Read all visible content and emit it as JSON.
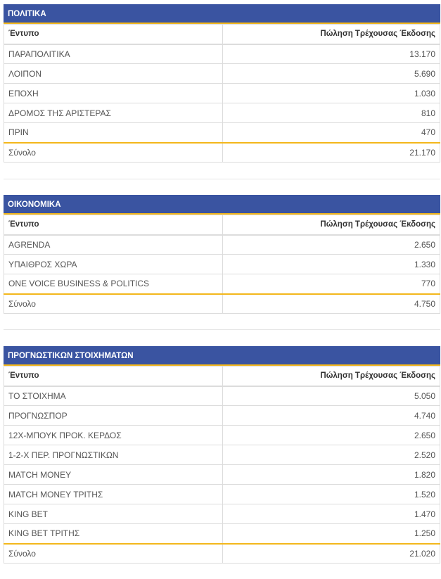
{
  "sections": [
    {
      "title": "ΠΟΛΙΤΙΚΑ",
      "col_item": "Έντυπο",
      "col_sales": "Πώληση Τρέχουσας Έκδοσης",
      "rows": [
        {
          "name": "ΠΑΡΑΠΟΛΙΤΙΚΑ",
          "value": "13.170"
        },
        {
          "name": "ΛΟΙΠΟΝ",
          "value": "5.690"
        },
        {
          "name": "ΕΠΟΧΗ",
          "value": "1.030"
        },
        {
          "name": "ΔΡΟΜΟΣ ΤΗΣ ΑΡΙΣΤΕΡΑΣ",
          "value": "810"
        },
        {
          "name": "ΠΡΙΝ",
          "value": "470"
        }
      ],
      "total_label": "Σύνολο",
      "total_value": "21.170"
    },
    {
      "title": "ΟΙΚΟΝΟΜΙΚΑ",
      "col_item": "Έντυπο",
      "col_sales": "Πώληση Τρέχουσας Έκδοσης",
      "rows": [
        {
          "name": "AGRENDA",
          "value": "2.650"
        },
        {
          "name": "ΥΠΑΙΘΡΟΣ ΧΩΡΑ",
          "value": "1.330"
        },
        {
          "name": "ONE VOICE BUSINESS & POLITICS",
          "value": "770"
        }
      ],
      "total_label": "Σύνολο",
      "total_value": "4.750"
    },
    {
      "title": "ΠΡΟΓΝΩΣΤΙΚΩΝ ΣΤΟΙΧΗΜΑΤΩΝ",
      "col_item": "Έντυπο",
      "col_sales": "Πώληση Τρέχουσας Έκδοσης",
      "rows": [
        {
          "name": "ΤΟ ΣΤΟΙΧΗΜΑ",
          "value": "5.050"
        },
        {
          "name": "ΠΡΟΓΝΩΣΠΟΡ",
          "value": "4.740"
        },
        {
          "name": "12Χ-ΜΠΟΥΚ ΠΡΟΚ. ΚΕΡΔΟΣ",
          "value": "2.650"
        },
        {
          "name": "1-2-Χ ΠΕΡ. ΠΡΟΓΝΩΣΤΙΚΩΝ",
          "value": "2.520"
        },
        {
          "name": "MATCH MONEY",
          "value": "1.820"
        },
        {
          "name": "MATCH MONEY ΤΡΙΤΗΣ",
          "value": "1.520"
        },
        {
          "name": "KING BET",
          "value": "1.470"
        },
        {
          "name": "KING BET ΤΡΙΤΗΣ",
          "value": "1.250"
        }
      ],
      "total_label": "Σύνολο",
      "total_value": "21.020"
    }
  ]
}
